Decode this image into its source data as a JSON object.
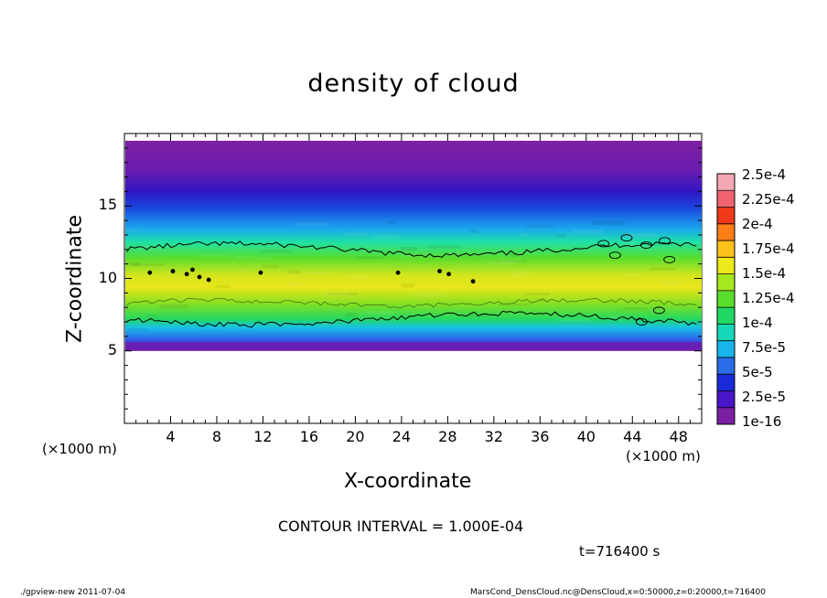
{
  "title": "density of cloud",
  "chart_data": {
    "type": "heatmap",
    "title": "density of cloud",
    "xlabel": "X-coordinate",
    "ylabel": "Z-coordinate",
    "x_unit": "(×1000 m)",
    "xlim": [
      0,
      50
    ],
    "ylim": [
      0,
      20
    ],
    "x_ticks": [
      "4",
      "8",
      "12",
      "16",
      "20",
      "24",
      "28",
      "32",
      "36",
      "40",
      "44",
      "48"
    ],
    "y_ticks": [
      "5",
      "10",
      "15"
    ],
    "x_tick_values": [
      4,
      8,
      12,
      16,
      20,
      24,
      28,
      32,
      36,
      40,
      44,
      48
    ],
    "y_tick_values": [
      5,
      10,
      15
    ],
    "colorbar": {
      "labels": [
        "1e-16",
        "2.5e-5",
        "5e-5",
        "7.5e-5",
        "1e-4",
        "1.25e-4",
        "1.5e-4",
        "1.75e-4",
        "2e-4",
        "2.25e-4",
        "2.5e-4"
      ],
      "colors": [
        "#7a1fa2",
        "#4a14c8",
        "#1a2ad8",
        "#2a6ce8",
        "#18b4ec",
        "#16d8b8",
        "#22d864",
        "#5ade2c",
        "#a6e81e",
        "#ece81a",
        "#fcc21c",
        "#fc7e18",
        "#f0381a",
        "#f06470",
        "#f4a8b4"
      ]
    },
    "profile": {
      "description": "cloud layer spanning z≈5 to z≈19.5 km, peak density near z≈10",
      "z": [
        5.0,
        5.5,
        6.2,
        7.0,
        8.0,
        9.0,
        10.0,
        11.0,
        12.0,
        13.0,
        14.0,
        15.0,
        16.0,
        17.0,
        18.5,
        19.5
      ],
      "density": [
        1e-06,
        8e-06,
        4e-05,
        9.5e-05,
        0.00013,
        0.000155,
        0.00017,
        0.000155,
        0.00012,
        8e-05,
        6e-05,
        3.5e-05,
        2e-05,
        9e-06,
        3e-06,
        5e-07
      ]
    },
    "contour_interval": "1.000E-04",
    "time": "t=716400 s"
  },
  "labels": {
    "xunit_left": "(×1000 m)",
    "xunit_right": "(×1000 m)",
    "contour_note": "CONTOUR INTERVAL = 1.000E-04",
    "time_note": "t=716400 s",
    "footer_left": "./gpview-new  2011-07-04",
    "footer_right": "MarsCond_DensCloud.nc@DensCloud,x=0:50000,z=0:20000,t=716400"
  }
}
